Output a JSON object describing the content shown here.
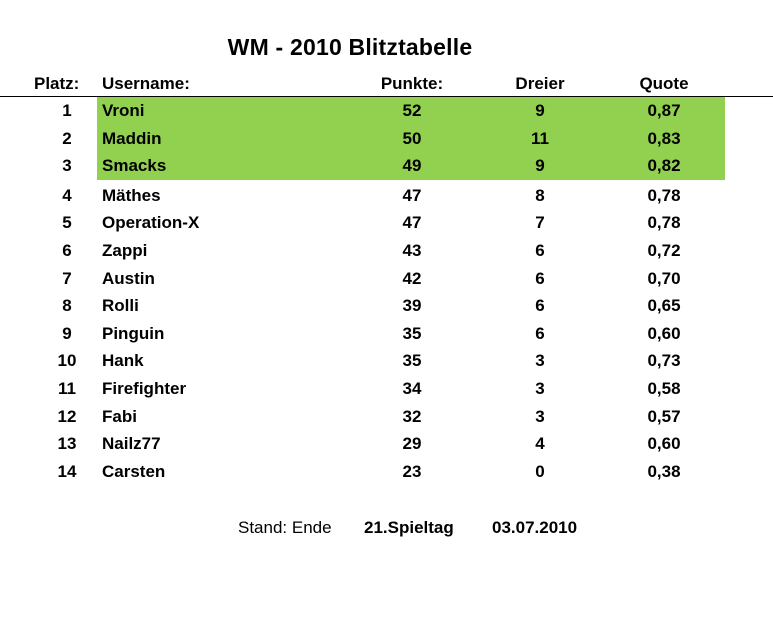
{
  "title": "WM - 2010 Blitztabelle",
  "columns": {
    "platz": "Platz:",
    "username": "Username:",
    "punkte": "Punkte:",
    "dreier": "Dreier",
    "quote": "Quote"
  },
  "highlight_color": "#92d050",
  "rows": [
    {
      "platz": "1",
      "username": "Vroni",
      "punkte": "52",
      "dreier": "9",
      "quote": "0,87",
      "highlighted": true
    },
    {
      "platz": "2",
      "username": "Maddin",
      "punkte": "50",
      "dreier": "11",
      "quote": "0,83",
      "highlighted": true
    },
    {
      "platz": "3",
      "username": "Smacks",
      "punkte": "49",
      "dreier": "9",
      "quote": "0,82",
      "highlighted": true
    },
    {
      "platz": "4",
      "username": "Mäthes",
      "punkte": "47",
      "dreier": "8",
      "quote": "0,78",
      "highlighted": false
    },
    {
      "platz": "5",
      "username": "Operation-X",
      "punkte": "47",
      "dreier": "7",
      "quote": "0,78",
      "highlighted": false
    },
    {
      "platz": "6",
      "username": "Zappi",
      "punkte": "43",
      "dreier": "6",
      "quote": "0,72",
      "highlighted": false
    },
    {
      "platz": "7",
      "username": "Austin",
      "punkte": "42",
      "dreier": "6",
      "quote": "0,70",
      "highlighted": false
    },
    {
      "platz": "8",
      "username": "Rolli",
      "punkte": "39",
      "dreier": "6",
      "quote": "0,65",
      "highlighted": false
    },
    {
      "platz": "9",
      "username": "Pinguin",
      "punkte": "35",
      "dreier": "6",
      "quote": "0,60",
      "highlighted": false
    },
    {
      "platz": "10",
      "username": "Hank",
      "punkte": "35",
      "dreier": "3",
      "quote": "0,73",
      "highlighted": false
    },
    {
      "platz": "11",
      "username": "Firefighter",
      "punkte": "34",
      "dreier": "3",
      "quote": "0,58",
      "highlighted": false
    },
    {
      "platz": "12",
      "username": "Fabi",
      "punkte": "32",
      "dreier": "3",
      "quote": "0,57",
      "highlighted": false
    },
    {
      "platz": "13",
      "username": "Nailz77",
      "punkte": "29",
      "dreier": "4",
      "quote": "0,60",
      "highlighted": false
    },
    {
      "platz": "14",
      "username": "Carsten",
      "punkte": "23",
      "dreier": "0",
      "quote": "0,38",
      "highlighted": false
    }
  ],
  "footer": {
    "stand_label": "Stand: Ende",
    "spieltag": "21.Spieltag",
    "date": "03.07.2010"
  }
}
